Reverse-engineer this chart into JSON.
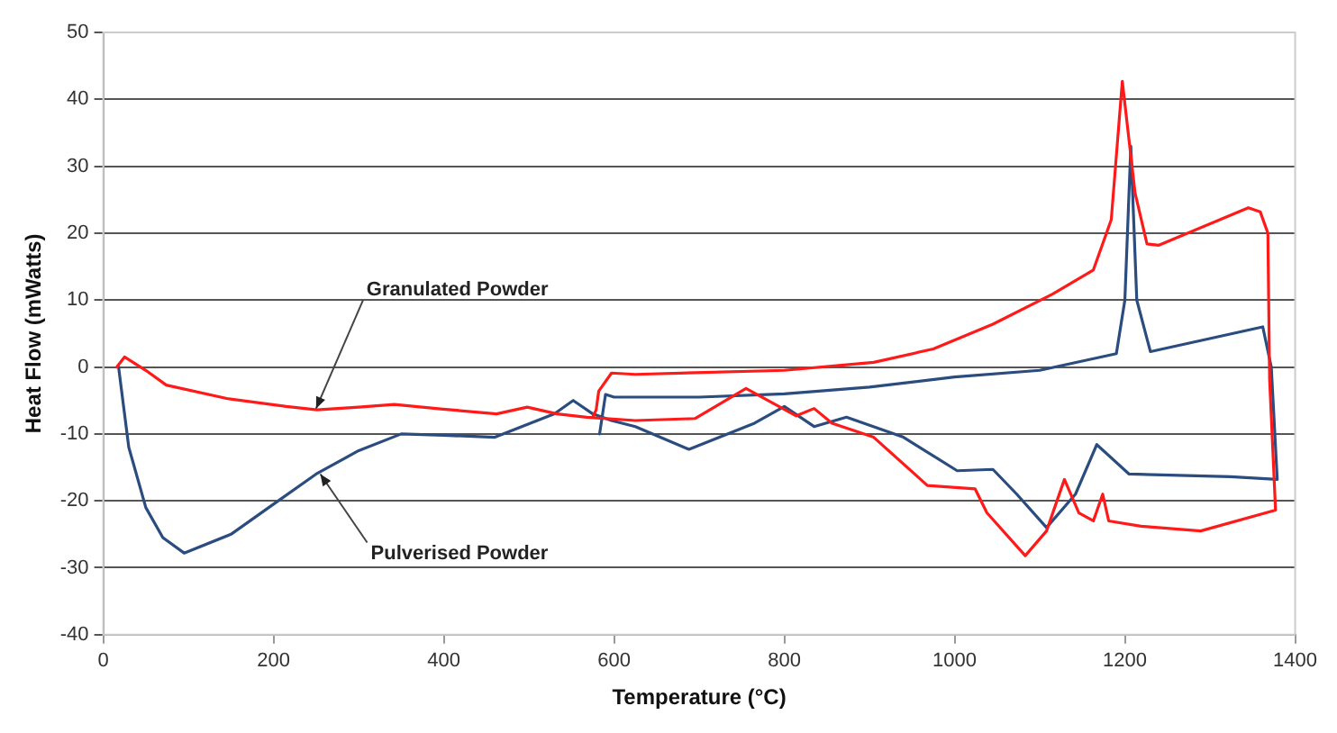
{
  "chart_data": {
    "type": "line",
    "xlabel": "Temperature (°C)",
    "ylabel": "Heat Flow (mWatts)",
    "xlim": [
      0,
      1400
    ],
    "xticks": [
      0,
      200,
      400,
      600,
      800,
      1000,
      1200,
      1400
    ],
    "ylim": [
      -40,
      50
    ],
    "yticks": [
      -40,
      -30,
      -20,
      -10,
      0,
      10,
      20,
      30,
      40,
      50
    ],
    "grid": "y",
    "legend": false,
    "marker": "none",
    "line_style": "solid",
    "annotations": [
      {
        "text": "Granulated Powder",
        "x": 250,
        "y": -6.2
      },
      {
        "text": "Pulverised Powder",
        "x": 255,
        "y": -16
      }
    ],
    "series": [
      {
        "color": "#ff1a1a",
        "x": [
          16,
          25,
          50,
          74,
          145,
          215,
          251,
          300,
          342,
          399,
          462,
          498,
          533,
          568,
          625,
          695,
          755,
          814,
          835,
          856,
          905,
          968,
          1024,
          1038,
          1083,
          1108,
          1129,
          1146,
          1163,
          1174,
          1181,
          1219,
          1289,
          1377,
          1370,
          1368,
          1359,
          1345,
          1240,
          1226,
          1212,
          1197,
          1184,
          1163,
          1115,
          1045,
          975,
          905,
          800,
          625,
          597,
          582,
          579,
          575
        ],
        "values": [
          0,
          1.5,
          -0.5,
          -2.7,
          -4.7,
          -5.9,
          -6.4,
          -6,
          -5.6,
          -6.3,
          -7,
          -6,
          -7,
          -7.5,
          -8,
          -7.7,
          -3.2,
          -7.3,
          -6.2,
          -8.4,
          -10.5,
          -17.7,
          -18.2,
          -21.8,
          -28.2,
          -24.5,
          -16.8,
          -21.8,
          -23,
          -19,
          -23,
          -23.8,
          -24.5,
          -21.4,
          -1.8,
          20,
          23.2,
          23.8,
          18.2,
          18.4,
          26,
          42.7,
          22,
          14.5,
          10.9,
          6.4,
          2.7,
          0.7,
          -0.5,
          -1.1,
          -0.9,
          -3.6,
          -6.4,
          -7.5
        ]
      },
      {
        "color": "#2b4c7e",
        "x": [
          18,
          30,
          50,
          70,
          95,
          150,
          200,
          250,
          300,
          350,
          400,
          460,
          530,
          552,
          575,
          597,
          625,
          688,
          765,
          800,
          835,
          873,
          940,
          1003,
          1045,
          1073,
          1108,
          1142,
          1167,
          1205,
          1324,
          1379,
          1372,
          1362,
          1230,
          1214,
          1207,
          1200,
          1190,
          1100,
          1000,
          900,
          800,
          700,
          600,
          590,
          583
        ],
        "values": [
          0,
          -12,
          -21,
          -25.5,
          -27.8,
          -25,
          -20.5,
          -16,
          -12.5,
          -10,
          -10.2,
          -10.5,
          -7,
          -5,
          -7,
          -8,
          -8.9,
          -12.3,
          -8.4,
          -5.9,
          -8.9,
          -7.5,
          -10.5,
          -15.5,
          -15.3,
          -19,
          -24,
          -19,
          -11.6,
          -16,
          -16.4,
          -16.8,
          0,
          6,
          2.3,
          10,
          33,
          10,
          2,
          -0.5,
          -1.5,
          -3,
          -4,
          -4.5,
          -4.5,
          -4.1,
          -10
        ]
      }
    ]
  }
}
